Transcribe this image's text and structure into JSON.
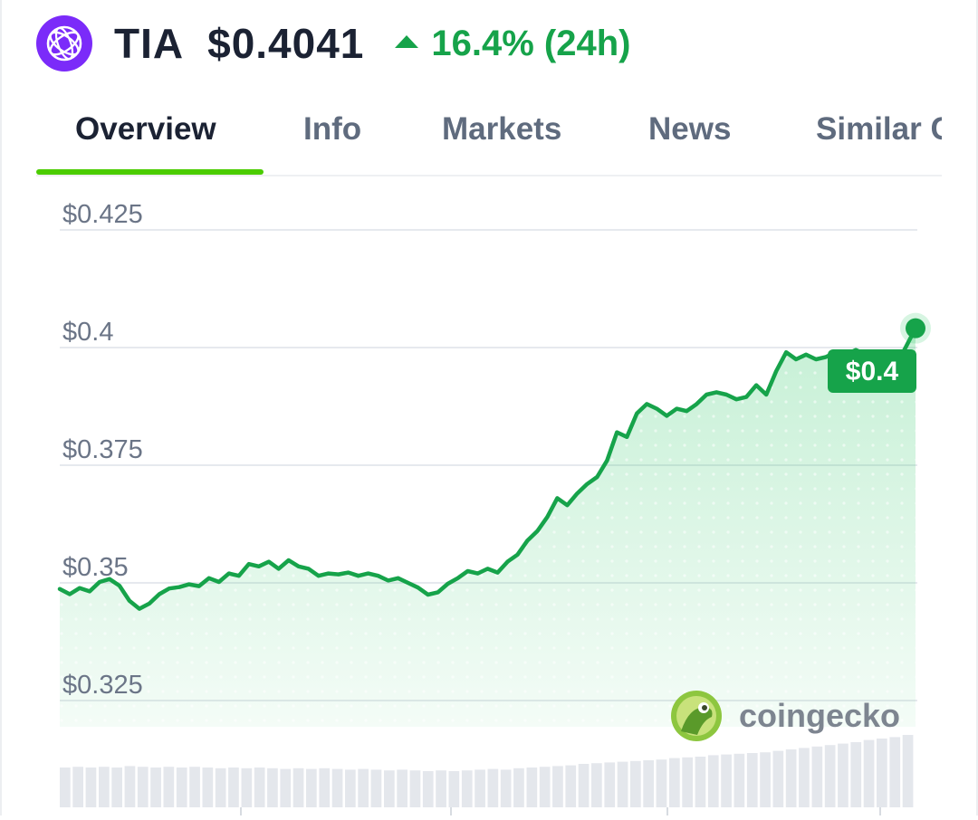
{
  "coin": {
    "symbol": "TIA",
    "price": "$0.4041",
    "change": "16.4% (24h)",
    "change_direction": "up",
    "logo_color": "#7b2bf9",
    "change_color": "#16a34a"
  },
  "tabs": [
    {
      "label": "Overview",
      "active": true
    },
    {
      "label": "Info",
      "active": false
    },
    {
      "label": "Markets",
      "active": false
    },
    {
      "label": "News",
      "active": false
    },
    {
      "label": "Similar Coins",
      "active": false
    }
  ],
  "tab_accent_color": "#4bcc00",
  "chart_data": {
    "type": "line",
    "title": "",
    "xlabel": "",
    "ylabel": "",
    "ylim": [
      0.3225,
      0.4275
    ],
    "yticks": [
      "$0.425",
      "$0.4",
      "$0.375",
      "$0.35",
      "$0.325"
    ],
    "ytick_values": [
      0.425,
      0.4,
      0.375,
      0.35,
      0.325
    ],
    "line_color": "#16a34a",
    "grid": true,
    "series": [
      {
        "values": [
          0.3487,
          0.3476,
          0.3489,
          0.3482,
          0.3502,
          0.3508,
          0.3494,
          0.3462,
          0.3445,
          0.3456,
          0.3476,
          0.3488,
          0.3491,
          0.3497,
          0.3493,
          0.351,
          0.3502,
          0.352,
          0.3515,
          0.354,
          0.3535,
          0.3545,
          0.353,
          0.3548,
          0.3535,
          0.353,
          0.3515,
          0.352,
          0.3518,
          0.3522,
          0.3515,
          0.352,
          0.3515,
          0.3505,
          0.351,
          0.35,
          0.349,
          0.3475,
          0.348,
          0.3498,
          0.351,
          0.3525,
          0.352,
          0.353,
          0.3522,
          0.3545,
          0.356,
          0.359,
          0.361,
          0.364,
          0.368,
          0.3665,
          0.369,
          0.371,
          0.3725,
          0.376,
          0.382,
          0.381,
          0.386,
          0.388,
          0.387,
          0.3855,
          0.387,
          0.3865,
          0.388,
          0.39,
          0.3905,
          0.39,
          0.389,
          0.3895,
          0.392,
          0.39,
          0.395,
          0.399,
          0.3975,
          0.3985,
          0.3975,
          0.398,
          0.399,
          0.3985,
          0.3995,
          0.3985,
          0.394,
          0.395,
          0.396,
          0.4,
          0.4041
        ]
      }
    ],
    "last_value_label": "$0.4",
    "volume_bars": [
      0.55,
      0.56,
      0.55,
      0.56,
      0.55,
      0.57,
      0.56,
      0.55,
      0.56,
      0.55,
      0.56,
      0.55,
      0.54,
      0.55,
      0.54,
      0.55,
      0.54,
      0.53,
      0.54,
      0.53,
      0.54,
      0.53,
      0.52,
      0.53,
      0.52,
      0.51,
      0.52,
      0.51,
      0.5,
      0.51,
      0.5,
      0.51,
      0.52,
      0.53,
      0.52,
      0.54,
      0.55,
      0.56,
      0.57,
      0.58,
      0.6,
      0.61,
      0.62,
      0.63,
      0.64,
      0.65,
      0.66,
      0.68,
      0.69,
      0.7,
      0.72,
      0.73,
      0.74,
      0.75,
      0.76,
      0.78,
      0.8,
      0.82,
      0.84,
      0.86,
      0.88,
      0.9,
      0.93,
      0.95,
      0.97,
      1.0
    ],
    "watermark": "coingecko"
  }
}
